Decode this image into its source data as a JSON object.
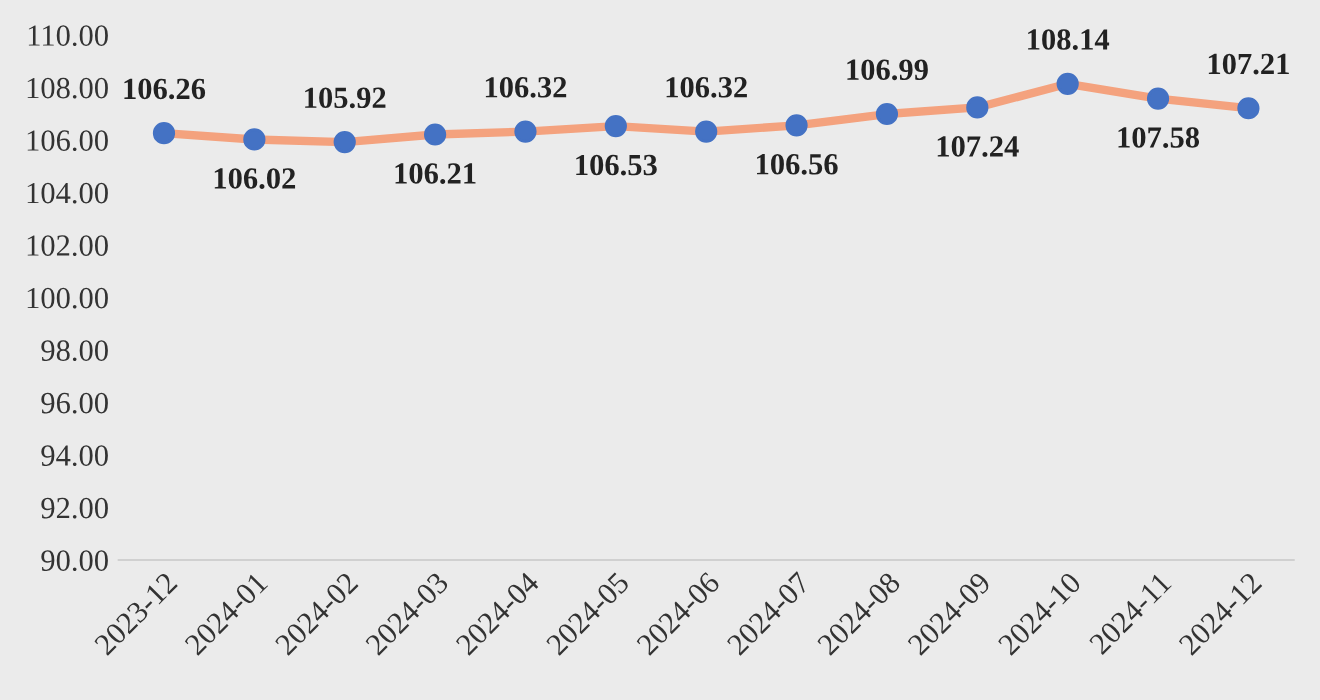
{
  "chart_data": {
    "type": "line",
    "categories": [
      "2023-12",
      "2024-01",
      "2024-02",
      "2024-03",
      "2024-04",
      "2024-05",
      "2024-06",
      "2024-07",
      "2024-08",
      "2024-09",
      "2024-10",
      "2024-11",
      "2024-12"
    ],
    "series": [
      {
        "color": "#f4a27e",
        "values": [
          106.26,
          106.02,
          105.92,
          106.21,
          106.32,
          106.53,
          106.32,
          106.56,
          106.99,
          107.24,
          108.14,
          107.58,
          107.21
        ]
      }
    ],
    "marker": "circle",
    "ylim": [
      90,
      110
    ],
    "yticks": [
      {
        "value": 90,
        "label": "90.00"
      },
      {
        "value": 92,
        "label": "92.00"
      },
      {
        "value": 94,
        "label": "94.00"
      },
      {
        "value": 96,
        "label": "96.00"
      },
      {
        "value": 98,
        "label": "98.00"
      },
      {
        "value": 100,
        "label": "100.00"
      },
      {
        "value": 102,
        "label": "102.00"
      },
      {
        "value": 104,
        "label": "104.00"
      },
      {
        "value": 106,
        "label": "106.00"
      },
      {
        "value": 108,
        "label": "108.00"
      },
      {
        "value": 110,
        "label": "110.00"
      }
    ],
    "data_labels": true
  }
}
